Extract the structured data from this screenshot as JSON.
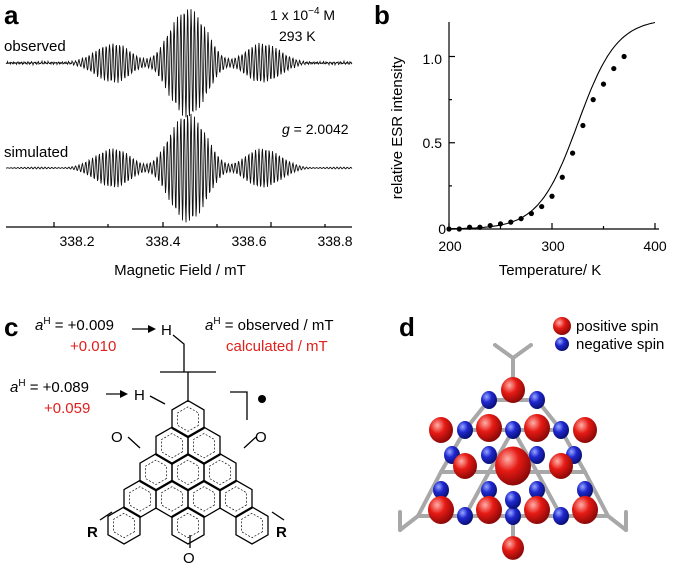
{
  "panel_a": {
    "label": "a",
    "observed_label": "observed",
    "simulated_label": "simulated",
    "concentration": "1 x 10",
    "concentration_exp": "−4",
    "concentration_unit": " M",
    "temperature": "293 K",
    "g_symbol": "g",
    "g_value": " = 2.0042",
    "xlabel": "Magnetic Field / mT",
    "xticks": [
      "338.2",
      "338.4",
      "338.6",
      "338.8"
    ]
  },
  "panel_b": {
    "label": "b",
    "chart_data": {
      "type": "scatter",
      "xlabel": "Temperature/ K",
      "ylabel": "relative ESR intensity",
      "xlim": [
        200,
        400
      ],
      "ylim": [
        0,
        1.2
      ],
      "xticks": [
        "200",
        "300",
        "400"
      ],
      "yticks": [
        "0",
        "0.5",
        "1.0"
      ],
      "x": [
        200,
        210,
        220,
        230,
        240,
        250,
        260,
        270,
        280,
        290,
        300,
        310,
        320,
        330,
        340,
        350,
        360,
        370
      ],
      "values": [
        0.0,
        0.0,
        0.01,
        0.01,
        0.02,
        0.03,
        0.04,
        0.06,
        0.09,
        0.13,
        0.19,
        0.3,
        0.44,
        0.6,
        0.75,
        0.84,
        0.93,
        1.0
      ]
    }
  },
  "panel_c": {
    "label": "c",
    "a_symbol": "a",
    "a_super": "H",
    "top_obs": " = +0.009",
    "top_calc": "+0.010",
    "mid_obs": " = +0.089",
    "mid_calc": "+0.059",
    "legend_obs": " = observed / mT",
    "legend_calc": "calculated / mT",
    "atom_H": "H",
    "atom_O": "O",
    "atom_R": "R"
  },
  "panel_d": {
    "label": "d",
    "positive_label": "positive spin",
    "negative_label": "negative spin",
    "colors": {
      "positive": "#e01818",
      "negative": "#1a22c8",
      "frame": "#a8a8a8"
    }
  }
}
